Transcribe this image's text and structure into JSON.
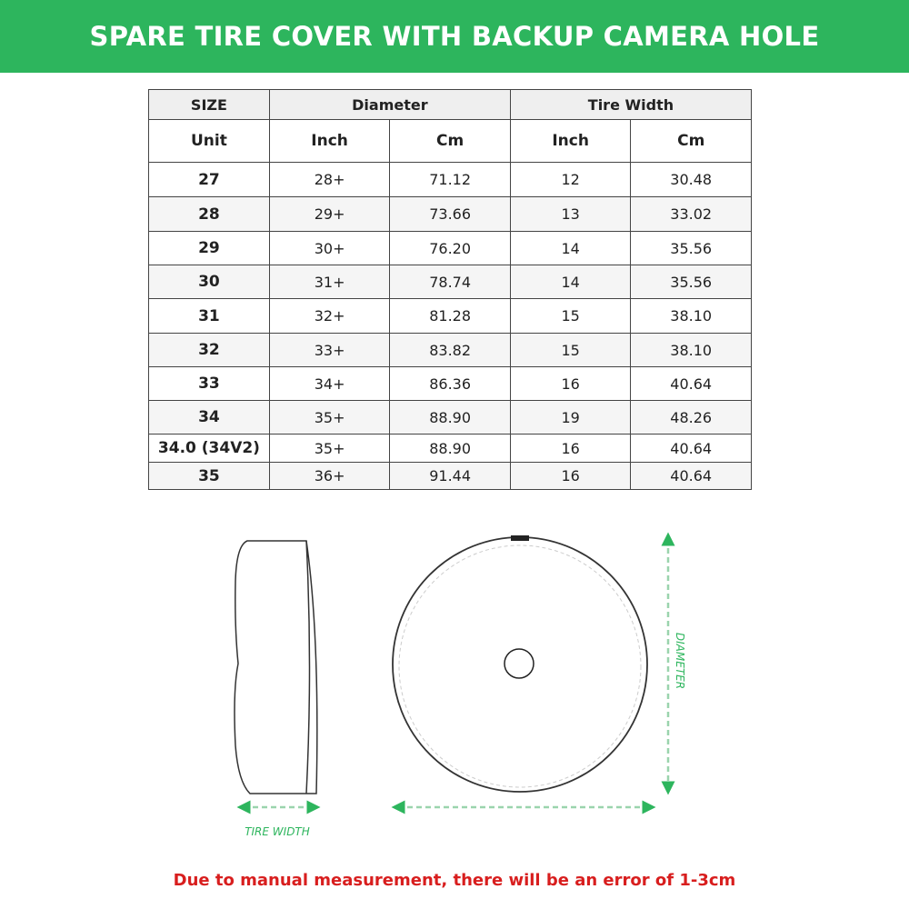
{
  "banner": {
    "title": "SPARE TIRE COVER WITH BACKUP CAMERA HOLE",
    "color": "#2db55d"
  },
  "table": {
    "group_headers": [
      "SIZE",
      "Diameter",
      "Tire Width"
    ],
    "sub_headers": [
      "Unit",
      "Inch",
      "Cm",
      "Inch",
      "Cm"
    ],
    "rows": [
      [
        "27",
        "28+",
        "71.12",
        "12",
        "30.48"
      ],
      [
        "28",
        "29+",
        "73.66",
        "13",
        "33.02"
      ],
      [
        "29",
        "30+",
        "76.20",
        "14",
        "35.56"
      ],
      [
        "30",
        "31+",
        "78.74",
        "14",
        "35.56"
      ],
      [
        "31",
        "32+",
        "81.28",
        "15",
        "38.10"
      ],
      [
        "32",
        "33+",
        "83.82",
        "15",
        "38.10"
      ],
      [
        "33",
        "34+",
        "86.36",
        "16",
        "40.64"
      ],
      [
        "34",
        "35+",
        "88.90",
        "19",
        "48.26"
      ],
      [
        "34.0 (34V2)",
        "35+",
        "88.90",
        "16",
        "40.64"
      ],
      [
        "35",
        "36+",
        "91.44",
        "16",
        "40.64"
      ]
    ]
  },
  "diagram": {
    "tire_width_label": "TIRE WIDTH",
    "diameter_label": "DIAMETER",
    "accent": "#2db55d"
  },
  "note": {
    "text": "Due to manual measurement, there will be an error of 1-3cm",
    "color": "#d81e1e"
  }
}
